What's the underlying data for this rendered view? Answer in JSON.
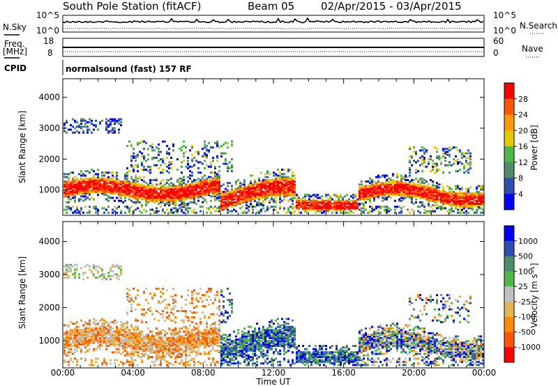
{
  "header": {
    "station": "South Pole Station (fitACF)",
    "beam": "Beam 05",
    "dates": "02/Apr/2015 - 03/Apr/2015"
  },
  "status_panels": {
    "nsky_label": "N.Sky",
    "nsearch_label": "N.Search",
    "nsky_ticks": [
      "10^5",
      "10^0"
    ],
    "nsearch_ticks": [
      "10^5",
      "10^0"
    ],
    "freq_label_top": "Freq.",
    "freq_label_unit": "[MHz]",
    "freq_ticks": [
      "18",
      "8"
    ],
    "nave_label": "Nave",
    "nave_ticks": [
      "60",
      "0"
    ],
    "cpid_label": "CPID",
    "cpid_value": "normalsound (fast) 157 RF"
  },
  "chart_data": [
    {
      "type": "heatmap",
      "name": "power",
      "ylabel": "Slant Range [km]",
      "yticks": [
        "4000",
        "3000",
        "2000",
        "1000"
      ],
      "ylim": [
        180,
        4600
      ],
      "colorbar_label": "Power [dB]",
      "colorbar_ticks": [
        "28",
        "24",
        "20",
        "16",
        "12",
        "8",
        "4"
      ],
      "colorbar_colors": [
        "#ff0000",
        "#ff5500",
        "#ff9900",
        "#e6c800",
        "#4fb849",
        "#4e8d6a",
        "#2c4fb0",
        "#0000ff"
      ]
    },
    {
      "type": "heatmap",
      "name": "velocity",
      "ylabel": "Slant Range [km]",
      "yticks": [
        "4000",
        "3000",
        "2000",
        "1000"
      ],
      "ylim": [
        180,
        4600
      ],
      "colorbar_label": "Velocity [m s⁻¹]",
      "colorbar_ticks": [
        "1000",
        "500",
        "100",
        "25",
        "-25",
        "-100",
        "-500",
        "-1000"
      ],
      "colorbar_colors": [
        "#0000ff",
        "#2c4fb0",
        "#4e8d6a",
        "#4fb849",
        "#c0c0c0",
        "#e6b450",
        "#ff8c00",
        "#ff5500",
        "#ff0000"
      ]
    }
  ],
  "xaxis": {
    "xlabel": "Time UT",
    "xticks": [
      "00:00",
      "04:00",
      "08:00",
      "12:00",
      "16:00",
      "20:00",
      "00:00"
    ]
  }
}
